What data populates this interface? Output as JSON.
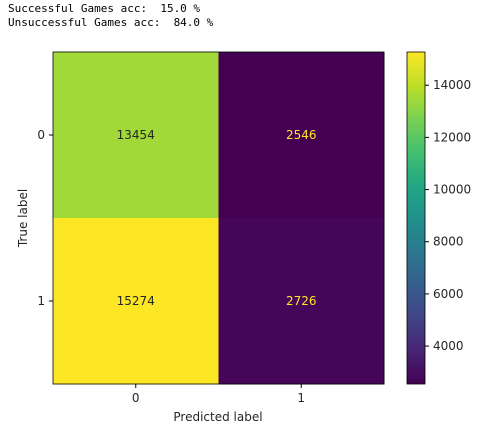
{
  "output_lines": [
    "Successful Games acc:  15.0 %",
    "Unsuccessful Games acc:  84.0 %"
  ],
  "chart_data": {
    "type": "heatmap",
    "title": "",
    "xlabel": "Predicted label",
    "ylabel": "True label",
    "x_categories": [
      "0",
      "1"
    ],
    "y_categories": [
      "0",
      "1"
    ],
    "values": [
      [
        13454,
        2546
      ],
      [
        15274,
        2726
      ]
    ],
    "colormap": "viridis",
    "colorbar": {
      "range": [
        2546,
        15274
      ],
      "ticks": [
        4000,
        6000,
        8000,
        10000,
        12000,
        14000
      ]
    },
    "text_colors": {
      "on_light": "#262626",
      "on_dark": "#fde725"
    },
    "grid": false
  }
}
